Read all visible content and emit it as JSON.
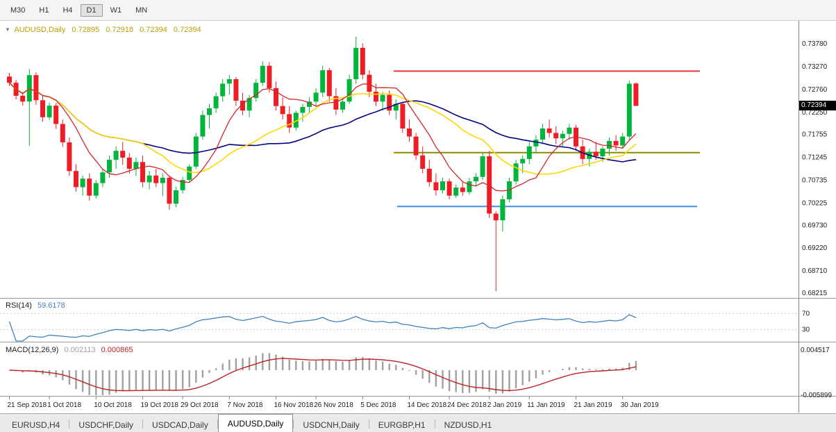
{
  "toolbar": {
    "timeframes": [
      {
        "label": "M30",
        "active": false
      },
      {
        "label": "H1",
        "active": false
      },
      {
        "label": "H4",
        "active": false
      },
      {
        "label": "D1",
        "active": true
      },
      {
        "label": "W1",
        "active": false
      },
      {
        "label": "MN",
        "active": false
      }
    ]
  },
  "chart": {
    "marker": "▼",
    "symbol_title": "AUDUSD,Daily",
    "ohlc_display": [
      "0.72895",
      "0.72918",
      "0.72394",
      "0.72394"
    ],
    "current_price": "0.72394"
  },
  "rsi_panel": {
    "name": "RSI(14)",
    "value": "59.6178",
    "axis_labels": [
      "70",
      "30"
    ]
  },
  "macd_panel": {
    "name": "MACD(12,26,9)",
    "value_main": "0.002113",
    "value_signal": "0.000865",
    "axis_labels": [
      "0.004517",
      "-0.005899"
    ]
  },
  "tabs": [
    {
      "label": "EURUSD,H4",
      "active": false
    },
    {
      "label": "USDCHF,Daily",
      "active": false
    },
    {
      "label": "USDCAD,Daily",
      "active": false
    },
    {
      "label": "AUDUSD,Daily",
      "active": true
    },
    {
      "label": "USDCNH,Daily",
      "active": false
    },
    {
      "label": "EURGBP,H1",
      "active": false
    },
    {
      "label": "NZDUSD,H1",
      "active": false
    }
  ],
  "colors": {
    "candle_up": "#00b43c",
    "candle_down": "#ee1c25",
    "ma_slow_navy": "#000080",
    "ma_medium_yellow": "#ffd700",
    "ma_fast_red": "#d02828",
    "hline_red": "#e53935",
    "hline_olive": "#8b8b00",
    "hline_blue": "#3e8ede",
    "rsi_line": "#4080c0",
    "macd_hist": "#a0a0a0",
    "macd_signal": "#c02020",
    "title_text": "#b8a000",
    "badge_bg": "#000000",
    "badge_text": "#ffffff"
  },
  "chart_data": {
    "type": "candlestick",
    "title": "AUDUSD,Daily",
    "ylim": [
      0.68106,
      0.74293
    ],
    "y_axis_labels": [
      "0.73780",
      "0.73270",
      "0.72760",
      "0.72250",
      "0.71755",
      "0.71245",
      "0.70735",
      "0.70225",
      "0.69730",
      "0.69220",
      "0.68710",
      "0.68215"
    ],
    "x_axis_labels": [
      {
        "text": "21 Sep 2018",
        "bar": 0
      },
      {
        "text": "1 Oct 2018",
        "bar": 6
      },
      {
        "text": "10 Oct 2018",
        "bar": 13
      },
      {
        "text": "19 Oct 2018",
        "bar": 20
      },
      {
        "text": "29 Oct 2018",
        "bar": 26
      },
      {
        "text": "7 Nov 2018",
        "bar": 33
      },
      {
        "text": "16 Nov 2018",
        "bar": 40
      },
      {
        "text": "26 Nov 2018",
        "bar": 46
      },
      {
        "text": "5 Dec 2018",
        "bar": 53
      },
      {
        "text": "14 Dec 2018",
        "bar": 60
      },
      {
        "text": "24 Dec 2018",
        "bar": 66
      },
      {
        "text": "2 Jan 2019",
        "bar": 72
      },
      {
        "text": "11 Jan 2019",
        "bar": 78
      },
      {
        "text": "21 Jan 2019",
        "bar": 85
      },
      {
        "text": "30 Jan 2019",
        "bar": 92
      }
    ],
    "hlines": [
      {
        "price": 0.7317,
        "color_key": "hline_red",
        "bar_start": 58,
        "bar_end": 104
      },
      {
        "price": 0.7135,
        "color_key": "hline_olive",
        "bar_start": 58,
        "bar_end": 104
      },
      {
        "price": 0.7015,
        "color_key": "hline_blue",
        "bar_start": 58.5,
        "bar_end": 103.5
      }
    ],
    "indicators": {
      "rsi_period": 14,
      "rsi_levels": [
        70,
        30
      ],
      "macd_params": [
        12,
        26,
        9
      ],
      "ma_periods": [
        8,
        21,
        34
      ]
    },
    "ohlc": [
      [
        0.7305,
        0.7313,
        0.7284,
        0.7291
      ],
      [
        0.7291,
        0.7297,
        0.7254,
        0.7262
      ],
      [
        0.7262,
        0.727,
        0.724,
        0.7249
      ],
      [
        0.7249,
        0.7322,
        0.715,
        0.7308
      ],
      [
        0.7308,
        0.7314,
        0.7242,
        0.7252
      ],
      [
        0.7252,
        0.7261,
        0.7204,
        0.7214
      ],
      [
        0.7214,
        0.7247,
        0.7208,
        0.724
      ],
      [
        0.724,
        0.7246,
        0.7188,
        0.7199
      ],
      [
        0.7199,
        0.7209,
        0.7148,
        0.7158
      ],
      [
        0.7158,
        0.7169,
        0.7083,
        0.7094
      ],
      [
        0.7094,
        0.7109,
        0.7048,
        0.7058
      ],
      [
        0.7058,
        0.7084,
        0.7039,
        0.7077
      ],
      [
        0.7077,
        0.7089,
        0.7028,
        0.7039
      ],
      [
        0.7039,
        0.7074,
        0.7033,
        0.7067
      ],
      [
        0.7067,
        0.7099,
        0.7058,
        0.7091
      ],
      [
        0.7091,
        0.7129,
        0.7079,
        0.7119
      ],
      [
        0.7119,
        0.7149,
        0.7099,
        0.7139
      ],
      [
        0.7139,
        0.7159,
        0.7108,
        0.7124
      ],
      [
        0.7124,
        0.7134,
        0.7088,
        0.7099
      ],
      [
        0.7099,
        0.7124,
        0.7083,
        0.7114
      ],
      [
        0.7114,
        0.7129,
        0.7058,
        0.7069
      ],
      [
        0.7069,
        0.7094,
        0.7053,
        0.7084
      ],
      [
        0.7084,
        0.7099,
        0.7058,
        0.7067
      ],
      [
        0.7067,
        0.7089,
        0.7038,
        0.7079
      ],
      [
        0.7079,
        0.7084,
        0.7008,
        0.7021
      ],
      [
        0.7021,
        0.7059,
        0.7013,
        0.7051
      ],
      [
        0.7051,
        0.7081,
        0.7044,
        0.7074
      ],
      [
        0.7074,
        0.7109,
        0.7068,
        0.7104
      ],
      [
        0.7104,
        0.7179,
        0.7099,
        0.7171
      ],
      [
        0.7171,
        0.7229,
        0.7164,
        0.7219
      ],
      [
        0.7219,
        0.7244,
        0.7189,
        0.7234
      ],
      [
        0.7234,
        0.7269,
        0.7224,
        0.7261
      ],
      [
        0.7261,
        0.7299,
        0.7249,
        0.7289
      ],
      [
        0.7289,
        0.7309,
        0.7264,
        0.7299
      ],
      [
        0.7299,
        0.7304,
        0.7239,
        0.7251
      ],
      [
        0.7251,
        0.7269,
        0.7219,
        0.7229
      ],
      [
        0.7229,
        0.7264,
        0.7214,
        0.7257
      ],
      [
        0.7257,
        0.7299,
        0.7249,
        0.7291
      ],
      [
        0.7291,
        0.7339,
        0.7284,
        0.7329
      ],
      [
        0.7329,
        0.7337,
        0.7269,
        0.7279
      ],
      [
        0.7279,
        0.7294,
        0.7229,
        0.7239
      ],
      [
        0.7239,
        0.7259,
        0.7209,
        0.7221
      ],
      [
        0.7221,
        0.7239,
        0.7179,
        0.7191
      ],
      [
        0.7191,
        0.7229,
        0.7184,
        0.7224
      ],
      [
        0.7224,
        0.7244,
        0.7204,
        0.7237
      ],
      [
        0.7237,
        0.7259,
        0.7224,
        0.7249
      ],
      [
        0.7249,
        0.7279,
        0.7239,
        0.7269
      ],
      [
        0.7269,
        0.7329,
        0.7259,
        0.7319
      ],
      [
        0.7319,
        0.7324,
        0.7249,
        0.7261
      ],
      [
        0.7261,
        0.7279,
        0.7219,
        0.7231
      ],
      [
        0.7231,
        0.7259,
        0.7224,
        0.7249
      ],
      [
        0.7249,
        0.7309,
        0.7244,
        0.7299
      ],
      [
        0.7299,
        0.7394,
        0.7289,
        0.7369
      ],
      [
        0.7369,
        0.7379,
        0.7299,
        0.7309
      ],
      [
        0.7309,
        0.7319,
        0.7259,
        0.7271
      ],
      [
        0.7271,
        0.7289,
        0.7239,
        0.7249
      ],
      [
        0.7249,
        0.7271,
        0.7229,
        0.7264
      ],
      [
        0.7264,
        0.7274,
        0.7219,
        0.7229
      ],
      [
        0.7229,
        0.7254,
        0.7209,
        0.7244
      ],
      [
        0.7244,
        0.7249,
        0.7179,
        0.7189
      ],
      [
        0.7189,
        0.7209,
        0.7159,
        0.7171
      ],
      [
        0.7171,
        0.7179,
        0.7119,
        0.7129
      ],
      [
        0.7129,
        0.7149,
        0.7089,
        0.7099
      ],
      [
        0.7099,
        0.7119,
        0.7059,
        0.7069
      ],
      [
        0.7069,
        0.7089,
        0.7039,
        0.7051
      ],
      [
        0.7051,
        0.7079,
        0.7044,
        0.7071
      ],
      [
        0.7071,
        0.7077,
        0.7031,
        0.7039
      ],
      [
        0.7039,
        0.7064,
        0.7034,
        0.7057
      ],
      [
        0.7057,
        0.7069,
        0.7039,
        0.7047
      ],
      [
        0.7047,
        0.7079,
        0.7041,
        0.7071
      ],
      [
        0.7071,
        0.7089,
        0.7059,
        0.7081
      ],
      [
        0.7081,
        0.7134,
        0.7074,
        0.7127
      ],
      [
        0.7127,
        0.7139,
        0.6989,
        0.6999
      ],
      [
        0.6999,
        0.7004,
        0.6826,
        0.6984
      ],
      [
        0.6984,
        0.7039,
        0.6959,
        0.7031
      ],
      [
        0.7031,
        0.7079,
        0.7024,
        0.7071
      ],
      [
        0.7071,
        0.7119,
        0.7064,
        0.7111
      ],
      [
        0.7111,
        0.7129,
        0.7089,
        0.7121
      ],
      [
        0.7121,
        0.7159,
        0.7109,
        0.7149
      ],
      [
        0.7149,
        0.7174,
        0.7134,
        0.7164
      ],
      [
        0.7164,
        0.7199,
        0.7154,
        0.7189
      ],
      [
        0.7189,
        0.7209,
        0.7169,
        0.7179
      ],
      [
        0.7179,
        0.7194,
        0.7154,
        0.7167
      ],
      [
        0.7167,
        0.7184,
        0.7149,
        0.7177
      ],
      [
        0.7177,
        0.7199,
        0.7164,
        0.7191
      ],
      [
        0.7191,
        0.7197,
        0.7139,
        0.7149
      ],
      [
        0.7149,
        0.7164,
        0.7109,
        0.7121
      ],
      [
        0.7121,
        0.7144,
        0.7104,
        0.7137
      ],
      [
        0.7137,
        0.7159,
        0.7119,
        0.7127
      ],
      [
        0.7127,
        0.7149,
        0.7114,
        0.7144
      ],
      [
        0.7144,
        0.7169,
        0.7129,
        0.7161
      ],
      [
        0.7161,
        0.7174,
        0.7139,
        0.7151
      ],
      [
        0.7151,
        0.7179,
        0.7144,
        0.7171
      ],
      [
        0.7171,
        0.7296,
        0.7164,
        0.7289
      ],
      [
        0.72895,
        0.72918,
        0.72394,
        0.72394
      ]
    ]
  }
}
